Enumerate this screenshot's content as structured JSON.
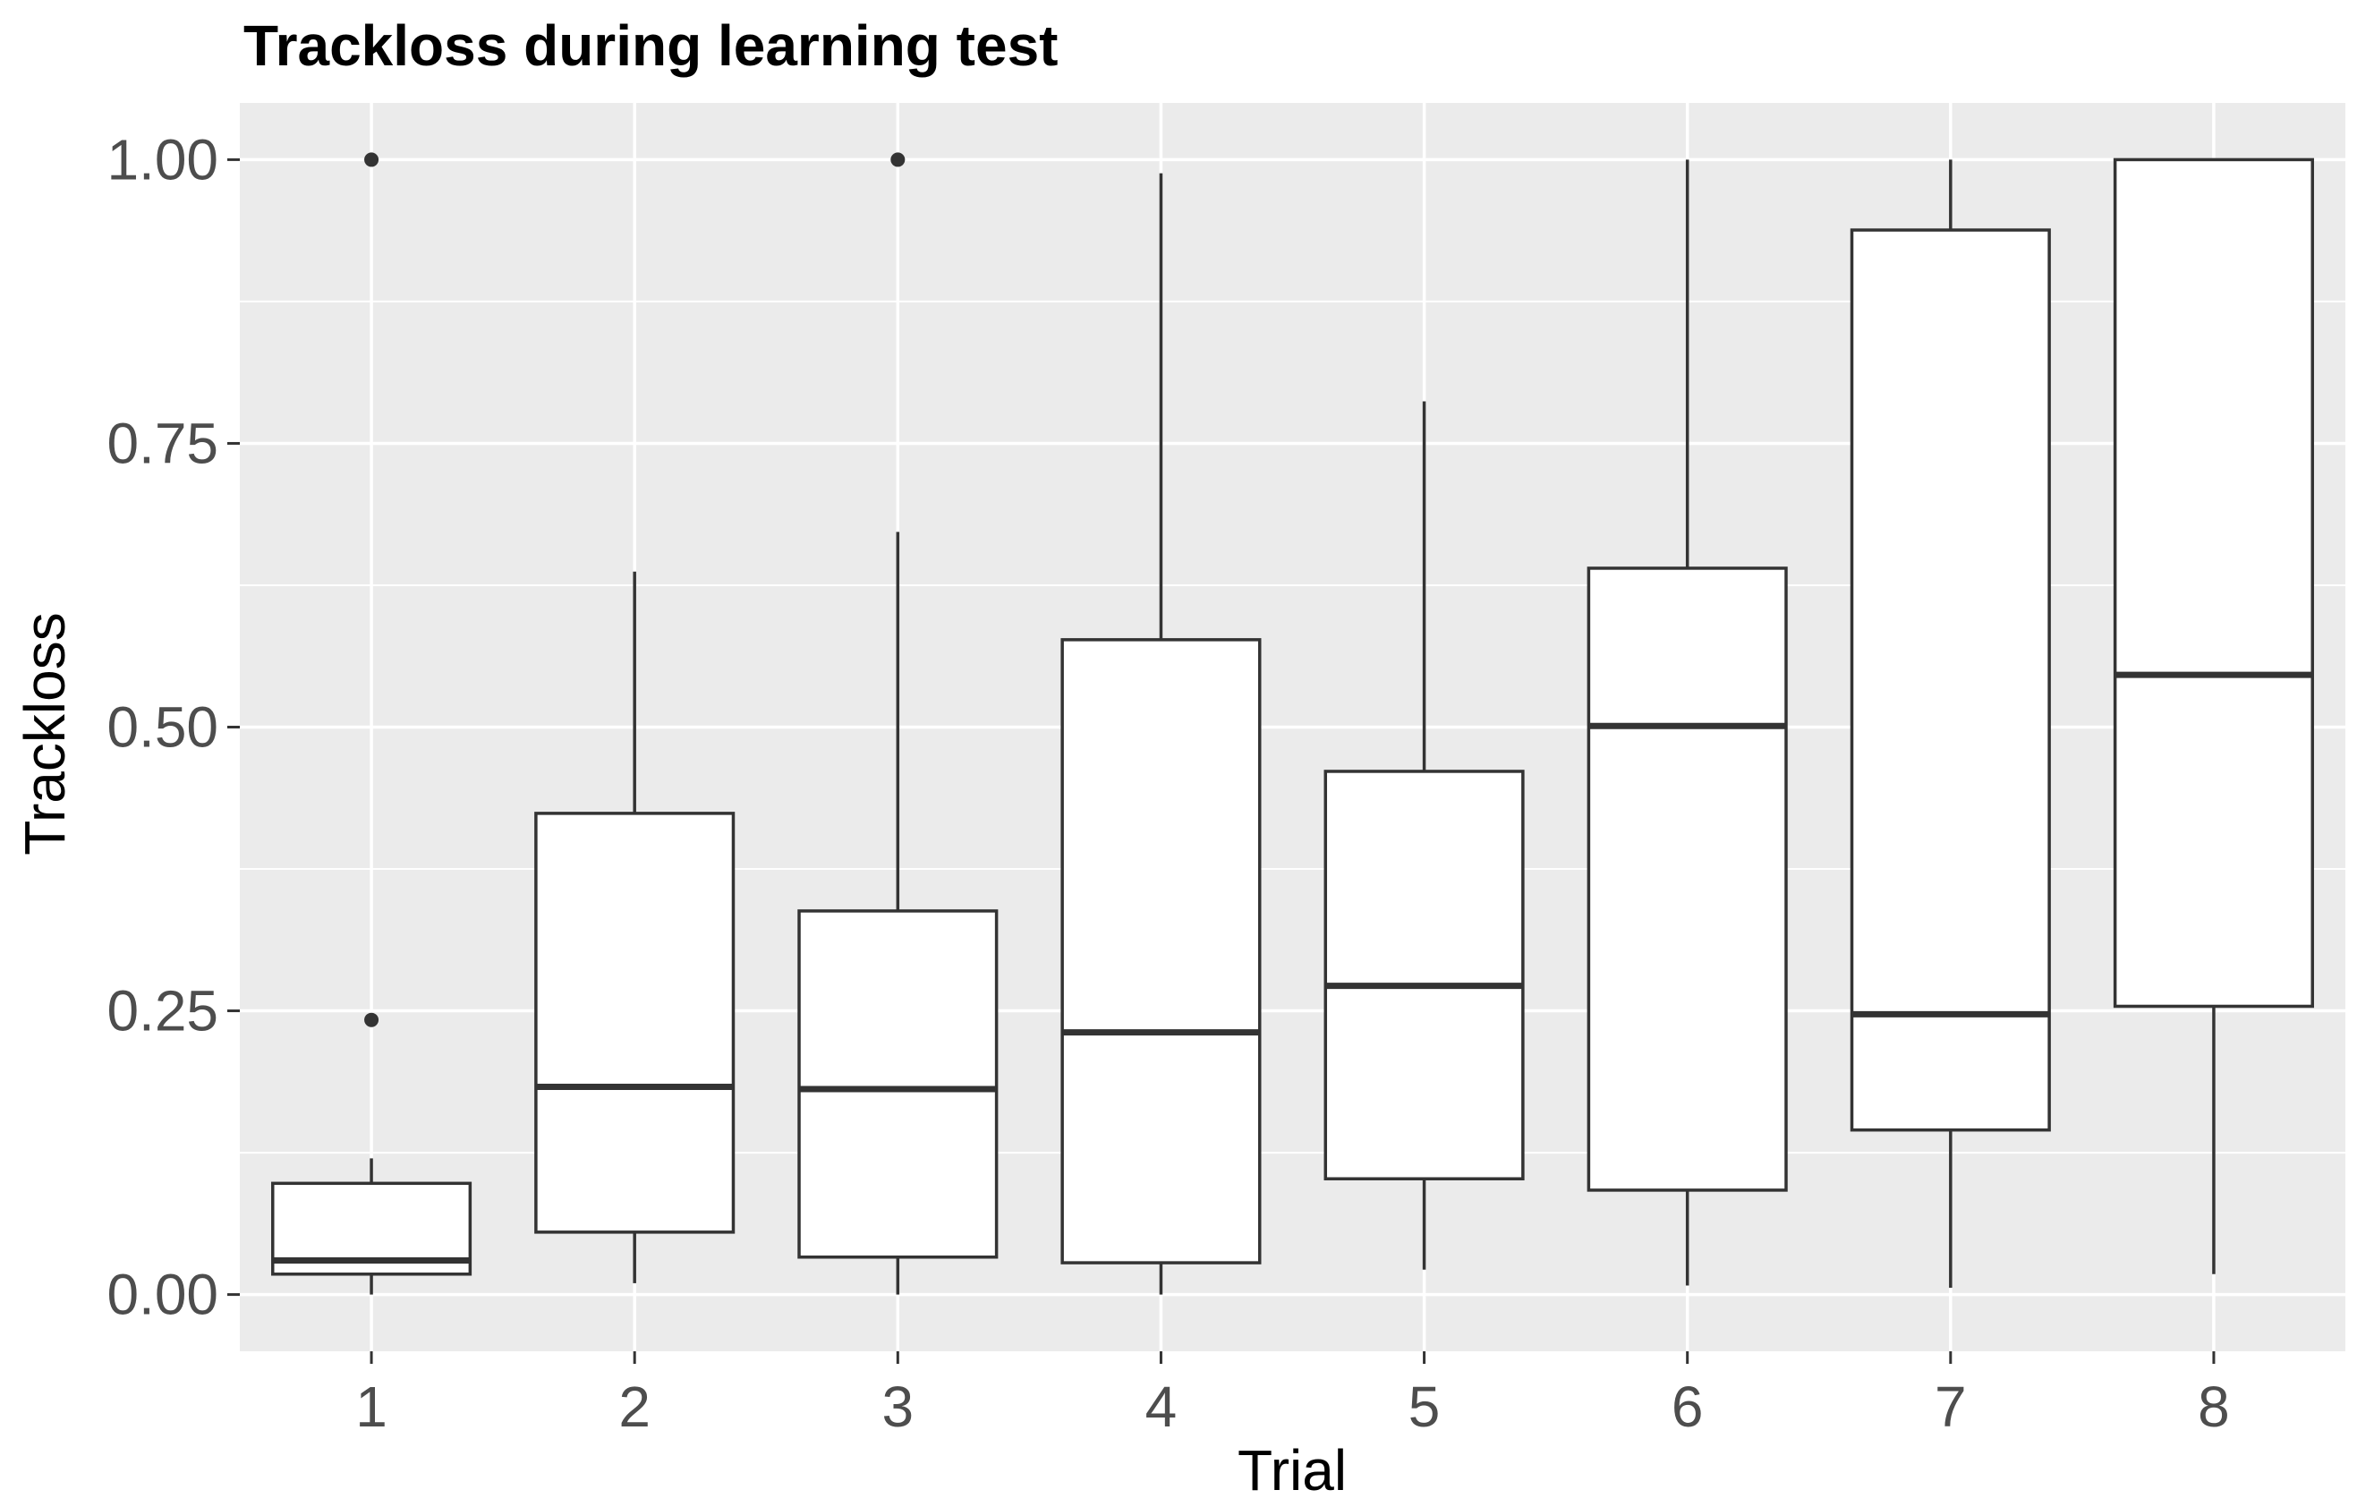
{
  "chart_data": {
    "type": "boxplot",
    "title": "Trackloss during learning test",
    "xlabel": "Trial",
    "ylabel": "Trackloss",
    "categories": [
      "1",
      "2",
      "3",
      "4",
      "5",
      "6",
      "7",
      "8"
    ],
    "y_ticks": [
      "0.00",
      "0.25",
      "0.50",
      "0.75",
      "1.00"
    ],
    "ylim": [
      -0.05,
      1.05
    ],
    "grid": true,
    "legend": "none",
    "colors": {
      "panel_background": "#ebebeb",
      "grid_line": "#ffffff",
      "box_fill": "#ffffff",
      "box_stroke": "#333333",
      "tick_label": "#4d4d4d"
    },
    "boxes": [
      {
        "trial": "1",
        "whisker_low": 0.0,
        "q1": 0.018,
        "median": 0.03,
        "q3": 0.098,
        "whisker_high": 0.12,
        "outliers": [
          0.242,
          1.0
        ]
      },
      {
        "trial": "2",
        "whisker_low": 0.01,
        "q1": 0.055,
        "median": 0.183,
        "q3": 0.424,
        "whisker_high": 0.637,
        "outliers": []
      },
      {
        "trial": "3",
        "whisker_low": 0.0,
        "q1": 0.033,
        "median": 0.181,
        "q3": 0.338,
        "whisker_high": 0.672,
        "outliers": [
          1.0
        ]
      },
      {
        "trial": "4",
        "whisker_low": 0.0,
        "q1": 0.028,
        "median": 0.231,
        "q3": 0.577,
        "whisker_high": 0.988,
        "outliers": []
      },
      {
        "trial": "5",
        "whisker_low": 0.022,
        "q1": 0.102,
        "median": 0.272,
        "q3": 0.461,
        "whisker_high": 0.787,
        "outliers": []
      },
      {
        "trial": "6",
        "whisker_low": 0.008,
        "q1": 0.092,
        "median": 0.501,
        "q3": 0.64,
        "whisker_high": 1.0,
        "outliers": []
      },
      {
        "trial": "7",
        "whisker_low": 0.006,
        "q1": 0.145,
        "median": 0.247,
        "q3": 0.938,
        "whisker_high": 1.0,
        "outliers": []
      },
      {
        "trial": "8",
        "whisker_low": 0.018,
        "q1": 0.254,
        "median": 0.546,
        "q3": 1.0,
        "whisker_high": 1.0,
        "outliers": []
      }
    ]
  }
}
